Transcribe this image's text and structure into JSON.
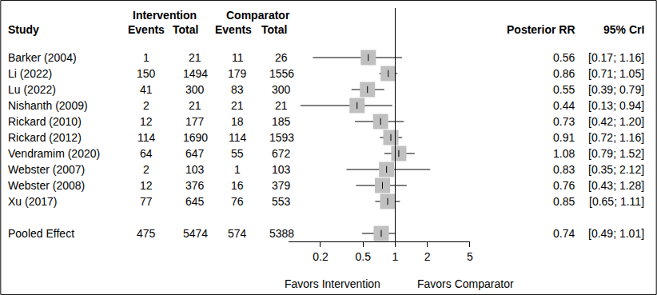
{
  "chart_data": {
    "type": "forest",
    "columns": {
      "study": "Study",
      "group_left": "Intervention",
      "group_right": "Comparator",
      "events": "Events",
      "total": "Total",
      "estimate": "Posterior RR",
      "interval": "95% CrI"
    },
    "studies": [
      {
        "name": "Barker (2004)",
        "int_events": 1,
        "int_total": 21,
        "comp_events": 11,
        "comp_total": 26,
        "rr": 0.56,
        "lo": 0.17,
        "hi": 1.16,
        "ci_label": "[0.17; 1.16]"
      },
      {
        "name": "Li (2022)",
        "int_events": 150,
        "int_total": 1494,
        "comp_events": 179,
        "comp_total": 1556,
        "rr": 0.86,
        "lo": 0.71,
        "hi": 1.05,
        "ci_label": "[0.71; 1.05]"
      },
      {
        "name": "Lu (2022)",
        "int_events": 41,
        "int_total": 300,
        "comp_events": 83,
        "comp_total": 300,
        "rr": 0.55,
        "lo": 0.39,
        "hi": 0.79,
        "ci_label": "[0.39; 0.79]"
      },
      {
        "name": "Nishanth (2009)",
        "int_events": 2,
        "int_total": 21,
        "comp_events": 21,
        "comp_total": 21,
        "rr": 0.44,
        "lo": 0.13,
        "hi": 0.94,
        "ci_label": "[0.13; 0.94]"
      },
      {
        "name": "Rickard (2010)",
        "int_events": 12,
        "int_total": 177,
        "comp_events": 18,
        "comp_total": 185,
        "rr": 0.73,
        "lo": 0.42,
        "hi": 1.2,
        "ci_label": "[0.42; 1.20]"
      },
      {
        "name": "Rickard (2012)",
        "int_events": 114,
        "int_total": 1690,
        "comp_events": 114,
        "comp_total": 1593,
        "rr": 0.91,
        "lo": 0.72,
        "hi": 1.16,
        "ci_label": "[0.72; 1.16]"
      },
      {
        "name": "Vendramim (2020)",
        "int_events": 64,
        "int_total": 647,
        "comp_events": 55,
        "comp_total": 672,
        "rr": 1.08,
        "lo": 0.79,
        "hi": 1.52,
        "ci_label": "[0.79; 1.52]"
      },
      {
        "name": "Webster (2007)",
        "int_events": 2,
        "int_total": 103,
        "comp_events": 1,
        "comp_total": 103,
        "rr": 0.83,
        "lo": 0.35,
        "hi": 2.12,
        "ci_label": "[0.35; 2.12]"
      },
      {
        "name": "Webster (2008)",
        "int_events": 12,
        "int_total": 376,
        "comp_events": 16,
        "comp_total": 379,
        "rr": 0.76,
        "lo": 0.43,
        "hi": 1.28,
        "ci_label": "[0.43; 1.28]"
      },
      {
        "name": "Xu (2017)",
        "int_events": 77,
        "int_total": 645,
        "comp_events": 76,
        "comp_total": 553,
        "rr": 0.85,
        "lo": 0.65,
        "hi": 1.11,
        "ci_label": "[0.65; 1.11]"
      }
    ],
    "pooled": {
      "name": "Pooled Effect",
      "int_events": 475,
      "int_total": 5474,
      "comp_events": 574,
      "comp_total": 5388,
      "rr": 0.74,
      "lo": 0.49,
      "hi": 1.01,
      "ci_label": "[0.49; 1.01]"
    },
    "xlim": [
      0.1,
      5
    ],
    "xticks": [
      0.2,
      0.5,
      1,
      2,
      5
    ],
    "log": "x",
    "reference_line": 1,
    "xlabel": [
      "Favors Intervention",
      "Favors Comparator"
    ],
    "color": "#c0c0c0"
  }
}
